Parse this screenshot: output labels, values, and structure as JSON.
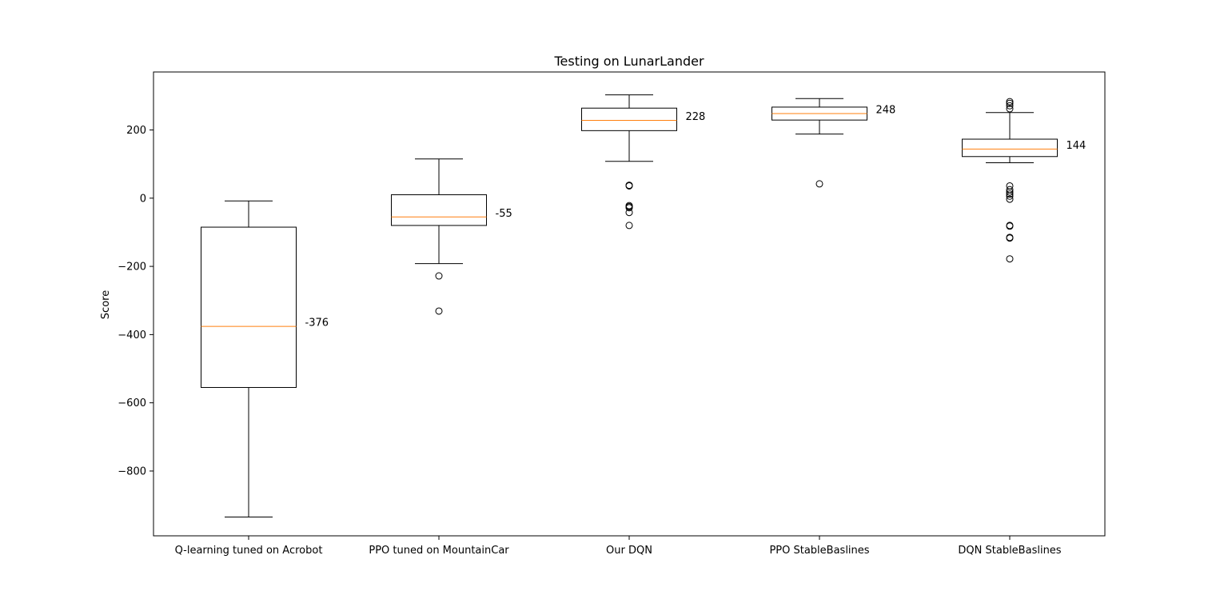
{
  "chart_data": {
    "type": "box",
    "title": "Testing on LunarLander",
    "xlabel": "",
    "ylabel": "Score",
    "ylim": [
      -990,
      370
    ],
    "yticks": [
      -800,
      -600,
      -400,
      -200,
      0,
      200
    ],
    "ytick_labels": [
      "−800",
      "−600",
      "−400",
      "−200",
      "0",
      "200"
    ],
    "grid": false,
    "colors": {
      "box": "#000000",
      "median": "#ff7f0e"
    },
    "categories": [
      "Q-learning tuned on Acrobot",
      "PPO tuned on MountainCar",
      "Our DQN",
      "PPO StableBaslines",
      "DQN StableBaslines"
    ],
    "boxes": [
      {
        "whisker_low": -935,
        "q1": -555,
        "median": -376,
        "q3": -85,
        "whisker_high": -8,
        "median_label": "-376",
        "outliers": []
      },
      {
        "whisker_low": -192,
        "q1": -80,
        "median": -55,
        "q3": 10,
        "whisker_high": 115,
        "median_label": "-55",
        "outliers": [
          -228,
          -331
        ]
      },
      {
        "whisker_low": 108,
        "q1": 198,
        "median": 228,
        "q3": 264,
        "whisker_high": 303,
        "median_label": "228",
        "outliers": [
          38,
          36,
          -22,
          -25,
          -28,
          -42,
          -80
        ]
      },
      {
        "whisker_low": 188,
        "q1": 229,
        "median": 248,
        "q3": 267,
        "whisker_high": 292,
        "median_label": "248",
        "outliers": [
          42
        ]
      },
      {
        "whisker_low": 104,
        "q1": 122,
        "median": 144,
        "q3": 173,
        "whisker_high": 251,
        "median_label": "144",
        "outliers": [
          283,
          278,
          271,
          262,
          36,
          25,
          18,
          12,
          6,
          -3,
          -80,
          -82,
          -115,
          -117,
          -178
        ]
      }
    ]
  }
}
